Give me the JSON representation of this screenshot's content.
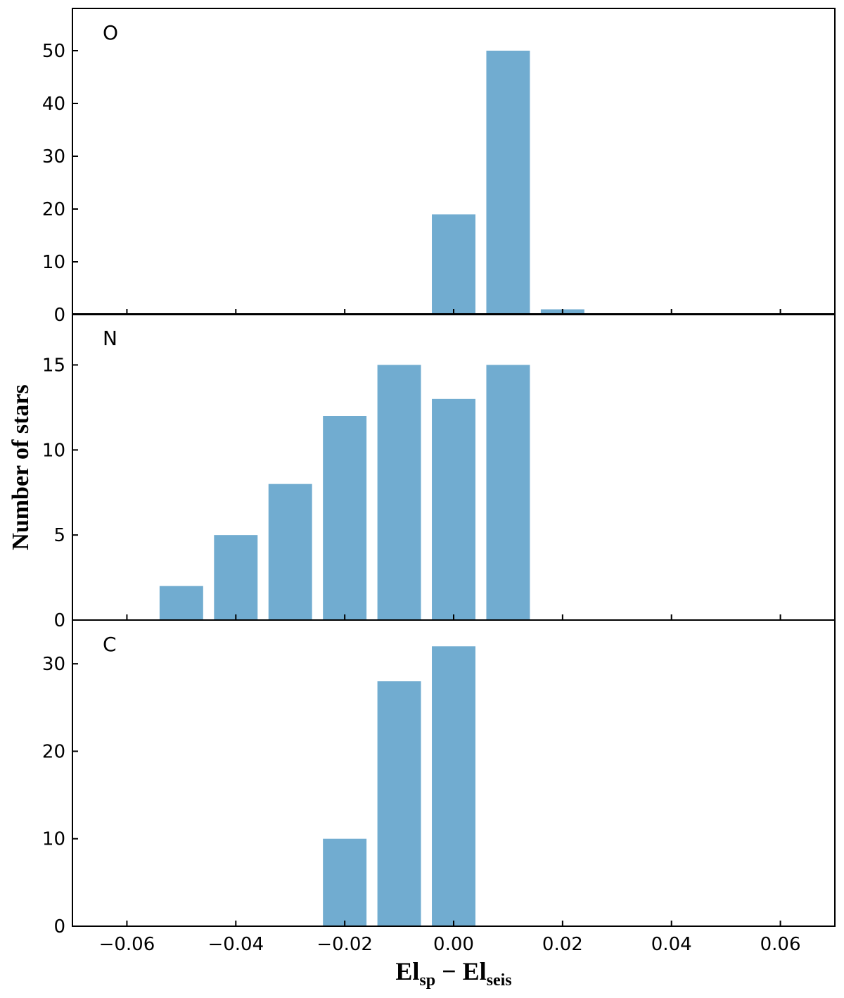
{
  "chart_data": {
    "type": "bar",
    "ylabel": "Number of stars",
    "xlabel": {
      "part1": "El",
      "sub1": "sp",
      "minus": " − ",
      "part2": "El",
      "sub2": "seis"
    },
    "xlim": [
      -0.07,
      0.07
    ],
    "xticks": [
      -0.06,
      -0.04,
      -0.02,
      0.0,
      0.02,
      0.04,
      0.06
    ],
    "xtick_labels": [
      "−0.06",
      "−0.04",
      "−0.02",
      "0.00",
      "0.02",
      "0.04",
      "0.06"
    ],
    "bar_width": 0.008,
    "bar_color": "#71acd0",
    "panels": [
      {
        "label": "O",
        "ylim": [
          0,
          58
        ],
        "yticks": [
          0,
          10,
          20,
          30,
          40,
          50
        ],
        "ytick_labels": [
          "0",
          "10",
          "20",
          "30",
          "40",
          "50"
        ],
        "bars": [
          {
            "x": 0.0,
            "value": 19
          },
          {
            "x": 0.01,
            "value": 50
          },
          {
            "x": 0.02,
            "value": 1
          }
        ]
      },
      {
        "label": "N",
        "ylim": [
          0,
          18
        ],
        "yticks": [
          0,
          5,
          10,
          15
        ],
        "ytick_labels": [
          "0",
          "5",
          "10",
          "15"
        ],
        "bars": [
          {
            "x": -0.05,
            "value": 2
          },
          {
            "x": -0.04,
            "value": 5
          },
          {
            "x": -0.03,
            "value": 8
          },
          {
            "x": -0.02,
            "value": 12
          },
          {
            "x": -0.01,
            "value": 15
          },
          {
            "x": 0.0,
            "value": 13
          },
          {
            "x": 0.01,
            "value": 15
          }
        ]
      },
      {
        "label": "C",
        "ylim": [
          0,
          35
        ],
        "yticks": [
          0,
          10,
          20,
          30
        ],
        "ytick_labels": [
          "0",
          "10",
          "20",
          "30"
        ],
        "bars": [
          {
            "x": -0.02,
            "value": 10
          },
          {
            "x": -0.01,
            "value": 28
          },
          {
            "x": 0.0,
            "value": 32
          }
        ]
      }
    ]
  }
}
